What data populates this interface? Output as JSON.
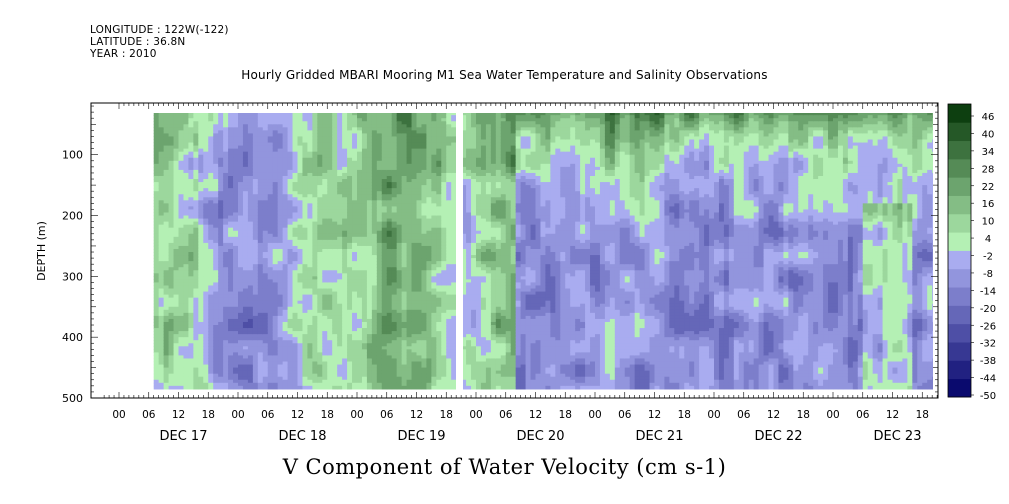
{
  "meta": {
    "longitude": "LONGITUDE : 122W(-122)",
    "latitude": "LATITUDE : 36.8N",
    "year": "YEAR : 2010"
  },
  "chart_data": {
    "type": "heatmap",
    "title": "Hourly Gridded MBARI Mooring M1 Sea Water Temperature and Salinity Observations",
    "subtitle": "V Component of Water Velocity (cm s-1)",
    "ylabel": "DEPTH (m)",
    "ylim": [
      500,
      0
    ],
    "y_ticks": [
      100,
      200,
      300,
      400,
      500
    ],
    "x_hour_ticks": [
      "00",
      "06",
      "12",
      "18",
      "00",
      "06",
      "12",
      "18",
      "00",
      "06",
      "12",
      "18",
      "00",
      "06",
      "12",
      "18",
      "00",
      "06",
      "12",
      "18",
      "00",
      "06",
      "12",
      "18",
      "00",
      "06",
      "12",
      "18"
    ],
    "x_day_labels": [
      "DEC 17",
      "DEC 18",
      "DEC 19",
      "DEC 20",
      "DEC 21",
      "DEC 22",
      "DEC 23"
    ],
    "colorbar": {
      "levels": [
        -50,
        -44,
        -38,
        -32,
        -26,
        -20,
        -14,
        -8,
        -2,
        4,
        10,
        16,
        22,
        28,
        34,
        40,
        46
      ],
      "label_values": [
        "46",
        "40",
        "34",
        "28",
        "22",
        "16",
        "10",
        "4",
        "-2",
        "-8",
        "-14",
        "-20",
        "-26",
        "-32",
        "-38",
        "-44",
        "-50"
      ],
      "low_color": "#0a0a6e",
      "mid_low_color": "#a9acf0",
      "mid_high_color": "#b4f0b4",
      "high_color": "#0d3f10"
    }
  }
}
